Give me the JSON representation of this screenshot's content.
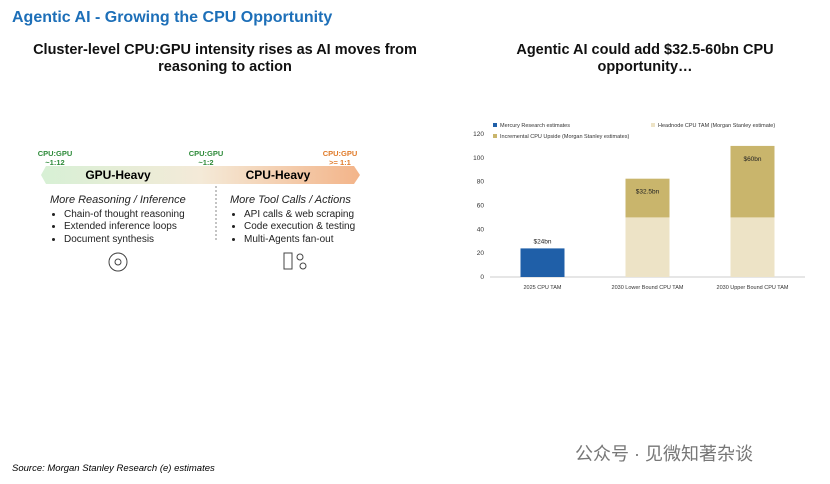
{
  "header": {
    "title": "Agentic AI - Growing the CPU Opportunity"
  },
  "left": {
    "title": "Cluster-level CPU:GPU intensity rises as AI moves from reasoning to action",
    "ratios": [
      {
        "label": "CPU:GPU",
        "value": "~1:12"
      },
      {
        "label": "CPU:GPU",
        "value": "~1:2"
      },
      {
        "label": "CPU:GPU",
        "value": ">= 1:1"
      }
    ],
    "segments": [
      "GPU-Heavy",
      "CPU-Heavy"
    ],
    "columns": [
      {
        "heading": "More Reasoning / Inference",
        "items": [
          "Chain-of thought reasoning",
          "Extended inference loops",
          "Document synthesis"
        ]
      },
      {
        "heading": "More Tool Calls / Actions",
        "items": [
          "API calls & web scraping",
          "Code execution & testing",
          "Multi-Agents fan-out"
        ]
      }
    ]
  },
  "right": {
    "title": "Agentic AI could add $32.5-60bn CPU opportunity…"
  },
  "chart_data": {
    "type": "stacked_bar",
    "categories": [
      "2025 CPU TAM",
      "2030 Lower Bound CPU TAM",
      "2030 Upper Bound CPU TAM"
    ],
    "series": [
      {
        "name": "Mercury Research estimates",
        "color": "#1f5fa8",
        "values": [
          24,
          null,
          null
        ],
        "value_labels": [
          "$24bn",
          null,
          null
        ]
      },
      {
        "name": "Headnode CPU TAM (Morgan Stanley estimate)",
        "color": "#ede3c6",
        "values": [
          null,
          50,
          50
        ]
      },
      {
        "name": "Incremental CPU Upside (Morgan Stanley estimates)",
        "color": "#c9b56c",
        "values": [
          null,
          32.5,
          60
        ],
        "value_labels": [
          null,
          "$32.5bn",
          "$60bn"
        ]
      }
    ],
    "ylim": [
      0,
      120
    ],
    "yticks": [
      0,
      20,
      40,
      60,
      80,
      100,
      120
    ],
    "grid": false
  },
  "footer": {
    "source": "Source: Morgan Stanley Research (e) estimates",
    "watermark": "公众号 · 见微知著杂谈"
  }
}
